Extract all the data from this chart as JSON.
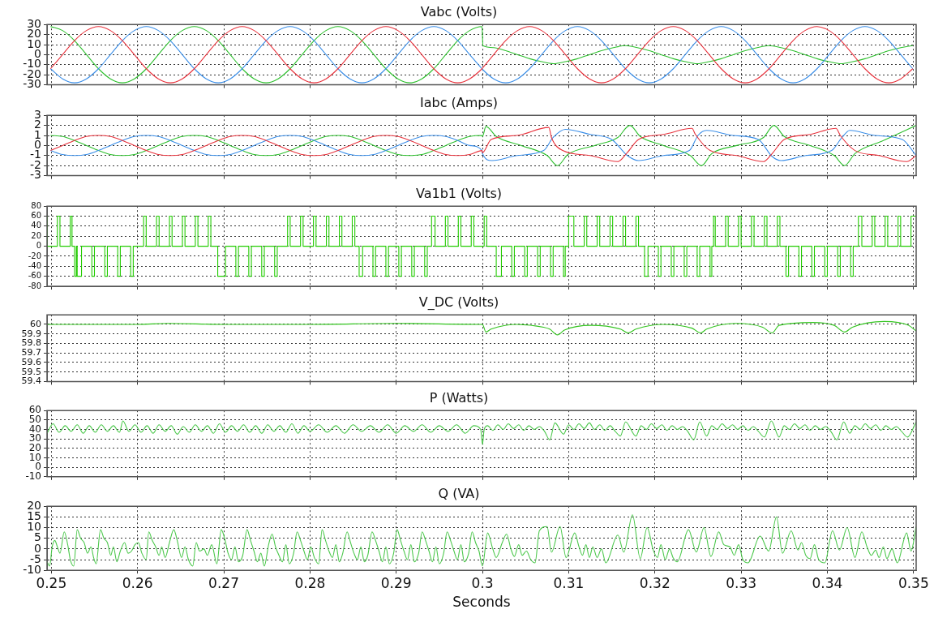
{
  "chart_data": [
    {
      "type": "line",
      "title": "Vabc (Volts)",
      "tick_labels": "y",
      "grid": true,
      "xlim": [
        0.2495,
        0.3503
      ],
      "xticks": [
        0.25,
        0.26,
        0.27,
        0.28,
        0.29,
        0.3,
        0.31,
        0.32,
        0.33,
        0.34,
        0.35
      ],
      "ylim": [
        -30,
        30
      ],
      "yticks": [
        -30,
        -20,
        -10,
        0,
        10,
        20,
        30
      ],
      "x": [
        0.24991,
        0.2513,
        0.25269,
        0.25408,
        0.25547,
        0.25685,
        0.25824,
        0.25963,
        0.26102,
        0.26241,
        0.2638,
        0.26519,
        0.26658,
        0.26797,
        0.26936,
        0.27075,
        0.27213,
        0.27352,
        0.27491,
        0.2763,
        0.27769,
        0.27908,
        0.28047,
        0.28186,
        0.28324,
        0.28463,
        0.28602,
        0.28741,
        0.2888,
        0.29019,
        0.29158,
        0.29297,
        0.29436,
        0.29574,
        0.29713,
        0.29852,
        0.29995,
        0.30005,
        0.3013,
        0.30269,
        0.30408,
        0.30547,
        0.30686,
        0.30824,
        0.30963,
        0.31102,
        0.31241,
        0.3138,
        0.31519,
        0.31658,
        0.31797,
        0.31936,
        0.32074,
        0.32213,
        0.32352,
        0.32491,
        0.3263,
        0.32769,
        0.32908,
        0.33047,
        0.33186,
        0.33324,
        0.33463,
        0.33602,
        0.33741,
        0.3388,
        0.34019,
        0.34158,
        0.34297,
        0.34436,
        0.34574,
        0.34713,
        0.34852,
        0.34991
      ],
      "series": [
        {
          "color": "#e8323c",
          "values": [
            -14,
            0,
            14,
            24,
            28,
            24,
            14,
            0,
            -14,
            -24,
            -28,
            -24,
            -14,
            0,
            14,
            24,
            28,
            24,
            14,
            0,
            -14,
            -24,
            -28,
            -24,
            -14,
            0,
            14,
            24,
            28,
            24,
            14,
            0,
            -14,
            -24,
            -28,
            -24,
            -14,
            -13,
            0,
            14,
            24,
            28,
            24,
            14,
            0,
            -14,
            -24,
            -28,
            -24,
            -14,
            0,
            14,
            24,
            28,
            24,
            14,
            0,
            -14,
            -24,
            -28,
            -24,
            -14,
            0,
            14,
            24,
            28,
            24,
            14,
            0,
            -14,
            -24,
            -28,
            -24,
            -14
          ]
        },
        {
          "color": "#3a8ee8",
          "values": [
            -14,
            -24,
            -28,
            -24,
            -14,
            0,
            14,
            24,
            28,
            24,
            14,
            0,
            -14,
            -24,
            -28,
            -24,
            -14,
            0,
            14,
            24,
            28,
            24,
            14,
            0,
            -14,
            -24,
            -28,
            -24,
            -14,
            0,
            14,
            24,
            28,
            24,
            14,
            0,
            -14,
            -15,
            -24,
            -28,
            -24,
            -14,
            0,
            14,
            24,
            28,
            24,
            14,
            0,
            -14,
            -24,
            -28,
            -24,
            -14,
            0,
            14,
            24,
            28,
            24,
            14,
            0,
            -14,
            -24,
            -28,
            -24,
            -14,
            0,
            14,
            24,
            28,
            24,
            14,
            0,
            -14
          ]
        },
        {
          "color": "#2ec02e",
          "values": [
            28,
            24,
            14,
            0,
            -14,
            -24,
            -28,
            -24,
            -14,
            0,
            14,
            24,
            28,
            24,
            14,
            0,
            -14,
            -24,
            -28,
            -24,
            -14,
            0,
            14,
            24,
            28,
            24,
            14,
            0,
            -14,
            -24,
            -28,
            -24,
            -14,
            0,
            14,
            24,
            28,
            9,
            7,
            4,
            0,
            -4,
            -7,
            -9,
            -7,
            -4,
            0,
            4,
            7,
            9,
            7,
            4,
            0,
            -4,
            -7,
            -9,
            -7,
            -4,
            0,
            4,
            7,
            9,
            7,
            4,
            0,
            -4,
            -7,
            -9,
            -7,
            -4,
            0,
            4,
            7,
            9
          ]
        }
      ]
    },
    {
      "type": "line",
      "title": "Iabc (Amps)",
      "tick_labels": "y",
      "grid": true,
      "xlim": [
        0.2495,
        0.3503
      ],
      "xticks": [
        0.25,
        0.26,
        0.27,
        0.28,
        0.29,
        0.3,
        0.31,
        0.32,
        0.33,
        0.34,
        0.35
      ],
      "ylim": [
        -3,
        3
      ],
      "yticks": [
        -3,
        -2,
        -1,
        0,
        1,
        2,
        3
      ],
      "series": [
        {
          "color": "#e8323c",
          "x": [
            0.24991,
            0.2513,
            0.25269,
            0.25408,
            0.25547,
            0.25685,
            0.25824,
            0.25963,
            0.26102,
            0.26241,
            0.2638,
            0.26519,
            0.26658,
            0.26797,
            0.26936,
            0.27075,
            0.27213,
            0.27352,
            0.27491,
            0.2763,
            0.27769,
            0.27908,
            0.28047,
            0.28186,
            0.28324,
            0.28463,
            0.28602,
            0.28741,
            0.2888,
            0.29019,
            0.29158,
            0.29297,
            0.29436,
            0.29574,
            0.29713,
            0.29852,
            0.29995,
            0.3,
            0.301,
            0.304,
            0.3077,
            0.308,
            0.3093,
            0.3125,
            0.3157,
            0.3168,
            0.3181,
            0.321,
            0.3243,
            0.3247,
            0.3264,
            0.3295,
            0.3326,
            0.3336,
            0.335,
            0.338,
            0.341,
            0.3415,
            0.3432,
            0.346,
            0.3492,
            0.3503
          ],
          "values": [
            -0.5,
            0,
            0.5,
            0.9,
            1,
            0.9,
            0.5,
            0,
            -0.5,
            -0.9,
            -1,
            -0.9,
            -0.5,
            0,
            0.5,
            0.9,
            1,
            0.9,
            0.5,
            0,
            -0.5,
            -0.9,
            -1,
            -0.9,
            -0.5,
            0,
            0.5,
            0.9,
            1,
            0.9,
            0.5,
            0,
            -0.5,
            -0.9,
            -1,
            -0.9,
            -0.5,
            -0.7,
            0.6,
            1,
            1.8,
            0.8,
            -0.5,
            -1,
            -1.6,
            -0.7,
            0.6,
            1.1,
            1.7,
            1.1,
            -0.5,
            -1,
            -1.6,
            -0.8,
            0.6,
            1.1,
            1.7,
            1,
            -0.5,
            -1,
            -1.6,
            -1
          ]
        },
        {
          "color": "#3a8ee8",
          "x": [
            0.24991,
            0.2513,
            0.25269,
            0.25408,
            0.25547,
            0.25685,
            0.25824,
            0.25963,
            0.26102,
            0.26241,
            0.2638,
            0.26519,
            0.26658,
            0.26797,
            0.26936,
            0.27075,
            0.27213,
            0.27352,
            0.27491,
            0.2763,
            0.27769,
            0.27908,
            0.28047,
            0.28186,
            0.28324,
            0.28463,
            0.28602,
            0.28741,
            0.2888,
            0.29019,
            0.29158,
            0.29297,
            0.29436,
            0.29574,
            0.29713,
            0.29852,
            0.29995,
            0.3,
            0.3011,
            0.304,
            0.3071,
            0.3082,
            0.3096,
            0.3125,
            0.315,
            0.3168,
            0.3181,
            0.321,
            0.324,
            0.325,
            0.326,
            0.329,
            0.332,
            0.3336,
            0.3346,
            0.3375,
            0.3405,
            0.3417,
            0.3426,
            0.3455,
            0.3487,
            0.3503
          ],
          "values": [
            -0.5,
            -0.9,
            -1,
            -0.9,
            -0.5,
            0,
            0.5,
            0.9,
            1,
            0.9,
            0.5,
            0,
            -0.5,
            -0.9,
            -1,
            -0.9,
            -0.5,
            0,
            0.5,
            0.9,
            1,
            0.9,
            0.5,
            0,
            -0.5,
            -0.9,
            -1,
            -0.9,
            -0.5,
            0,
            0.5,
            0.9,
            1,
            0.9,
            0.5,
            0,
            -0.5,
            -0.8,
            -1.5,
            -1,
            -0.5,
            0.8,
            1.6,
            1.1,
            0.6,
            -1,
            -1.5,
            -1,
            -0.5,
            1,
            1.5,
            1,
            0.6,
            -1.1,
            -1.5,
            -1,
            -0.5,
            0.8,
            1.5,
            1,
            0.6,
            -1
          ]
        },
        {
          "color": "#2ec02e",
          "x": [
            0.24991,
            0.2513,
            0.25269,
            0.25408,
            0.25547,
            0.25685,
            0.25824,
            0.25963,
            0.26102,
            0.26241,
            0.2638,
            0.26519,
            0.26658,
            0.26797,
            0.26936,
            0.27075,
            0.27213,
            0.27352,
            0.27491,
            0.2763,
            0.27769,
            0.27908,
            0.28047,
            0.28186,
            0.28324,
            0.28463,
            0.28602,
            0.28741,
            0.2888,
            0.29019,
            0.29158,
            0.29297,
            0.29436,
            0.29574,
            0.29713,
            0.29852,
            0.29995,
            0.3,
            0.3004,
            0.3016,
            0.3045,
            0.3075,
            0.3087,
            0.3099,
            0.313,
            0.3157,
            0.3171,
            0.3183,
            0.321,
            0.3241,
            0.3254,
            0.3266,
            0.3295,
            0.3326,
            0.3338,
            0.335,
            0.338,
            0.3408,
            0.342,
            0.3432,
            0.3465,
            0.3503
          ],
          "values": [
            1,
            0.9,
            0.5,
            0,
            -0.5,
            -0.9,
            -1,
            -0.9,
            -0.5,
            0,
            0.5,
            0.9,
            1,
            0.9,
            0.5,
            0,
            -0.5,
            -0.9,
            -1,
            -0.9,
            -0.5,
            0,
            0.5,
            0.9,
            1,
            0.9,
            0.5,
            0,
            -0.5,
            -0.9,
            -1,
            -0.9,
            -0.5,
            0,
            0.5,
            0.9,
            1,
            0.9,
            1.9,
            0.9,
            0,
            -1,
            -2,
            -0.9,
            0,
            0.8,
            2,
            0.9,
            0,
            -1,
            -2,
            -0.8,
            0,
            0.8,
            2,
            0.9,
            0,
            -1,
            -2,
            -0.8,
            0.5,
            2
          ]
        }
      ]
    },
    {
      "type": "step",
      "title": "Va1b1 (Volts)",
      "tick_labels": "y",
      "grid": true,
      "xlim": [
        0.2495,
        0.3503
      ],
      "xticks": [
        0.25,
        0.26,
        0.27,
        0.28,
        0.29,
        0.3,
        0.31,
        0.32,
        0.33,
        0.34,
        0.35
      ],
      "ylim": [
        -80,
        80
      ],
      "yticks": [
        -80,
        -60,
        -40,
        -20,
        0,
        20,
        40,
        60,
        80
      ],
      "series": [
        {
          "color": "#22cc00",
          "x": [
            0.2495,
            0.2507,
            0.251,
            0.2522,
            0.2524,
            0.2527,
            0.2529,
            0.253,
            0.2535,
            0.2547,
            0.255,
            0.2562,
            0.2565,
            0.2577,
            0.258,
            0.2592,
            0.2595,
            0.2607,
            0.261,
            0.2622,
            0.2625,
            0.2637,
            0.264,
            0.2652,
            0.2655,
            0.2667,
            0.267,
            0.2682,
            0.2685,
            0.2693,
            0.2702,
            0.2714,
            0.2717,
            0.2729,
            0.2732,
            0.2744,
            0.2747,
            0.2759,
            0.2762,
            0.2774,
            0.2777,
            0.2789,
            0.2792,
            0.2804,
            0.2807,
            0.2819,
            0.2822,
            0.2834,
            0.2837,
            0.2849,
            0.2852,
            0.2857,
            0.2861,
            0.2873,
            0.2876,
            0.2888,
            0.2891,
            0.2903,
            0.2906,
            0.2918,
            0.2921,
            0.2933,
            0.2936,
            0.2941,
            0.2945,
            0.2957,
            0.296,
            0.2972,
            0.2975,
            0.2987,
            0.299,
            0.3002,
            0.3005,
            0.3016,
            0.3022,
            0.3034,
            0.3037,
            0.3049,
            0.3052,
            0.3064,
            0.3067,
            0.3079,
            0.3082,
            0.3094,
            0.3096,
            0.31,
            0.3106,
            0.3118,
            0.3121,
            0.3133,
            0.3136,
            0.3148,
            0.3151,
            0.3163,
            0.3166,
            0.3178,
            0.3181,
            0.3188,
            0.3192,
            0.3204,
            0.3207,
            0.3219,
            0.3222,
            0.3234,
            0.3237,
            0.3249,
            0.3252,
            0.3264,
            0.3266,
            0.3268,
            0.327,
            0.3282,
            0.3285,
            0.3297,
            0.33,
            0.3312,
            0.3315,
            0.3327,
            0.333,
            0.3342,
            0.3345,
            0.3352,
            0.3355,
            0.3367,
            0.337,
            0.3382,
            0.3385,
            0.3397,
            0.34,
            0.3412,
            0.3415,
            0.3427,
            0.343,
            0.3436,
            0.344,
            0.3452,
            0.3455,
            0.3467,
            0.347,
            0.3482,
            0.3485,
            0.3497,
            0.35,
            0.3503
          ],
          "values": [
            60,
            0,
            60,
            0,
            60,
            0,
            -60,
            0,
            -60,
            0,
            -60,
            0,
            -60,
            0,
            -60,
            0,
            -60,
            0,
            60,
            0,
            60,
            0,
            60,
            0,
            60,
            0,
            60,
            0,
            60,
            0,
            -60,
            0,
            -60,
            0,
            -60,
            0,
            -60,
            0,
            -60,
            0,
            60,
            0,
            60,
            0,
            60,
            0,
            60,
            0,
            60,
            0,
            60,
            0,
            -60,
            0,
            -60,
            0,
            -60,
            0,
            -60,
            0,
            -60,
            0,
            -60,
            0,
            60,
            0,
            60,
            0,
            60,
            0,
            60,
            0,
            60,
            0,
            -60,
            0,
            -60,
            0,
            -60,
            0,
            -60,
            0,
            -60,
            0,
            -60,
            0,
            60,
            0,
            60,
            0,
            60,
            0,
            60,
            0,
            60,
            0,
            60,
            0,
            -60,
            0,
            -60,
            0,
            -60,
            0,
            -60,
            0,
            -60,
            0,
            -60,
            0,
            60,
            0,
            60,
            0,
            60,
            0,
            60,
            0,
            60,
            0,
            60,
            0,
            -60,
            0,
            -60,
            0,
            -60,
            0,
            -60,
            0,
            -60,
            0,
            -60,
            0,
            60,
            0,
            60,
            0,
            60,
            0,
            60,
            0,
            60,
            60
          ]
        }
      ]
    },
    {
      "type": "line",
      "title": "V_DC (Volts)",
      "tick_labels": "y",
      "grid": true,
      "xlim": [
        0.2495,
        0.3503
      ],
      "xticks": [
        0.25,
        0.26,
        0.27,
        0.28,
        0.29,
        0.3,
        0.31,
        0.32,
        0.33,
        0.34,
        0.35
      ],
      "ylim": [
        59.4,
        60.1
      ],
      "yticks": [
        59.4,
        59.5,
        59.6,
        59.7,
        59.8,
        59.9,
        60
      ],
      "series": [
        {
          "color": "#33c41f",
          "x": [
            0.2495,
            0.2525,
            0.26,
            0.2635,
            0.27,
            0.28,
            0.29,
            0.2999,
            0.3,
            0.3004,
            0.301,
            0.304,
            0.3071,
            0.3078,
            0.3087,
            0.3095,
            0.3126,
            0.316,
            0.3169,
            0.3178,
            0.3209,
            0.3243,
            0.3253,
            0.326,
            0.3294,
            0.3325,
            0.3336,
            0.3344,
            0.3383,
            0.3408,
            0.342,
            0.3429,
            0.3466,
            0.3494,
            0.3503
          ],
          "values": [
            60,
            60,
            60,
            60.01,
            60,
            60,
            60.01,
            60,
            60,
            59.92,
            59.95,
            60,
            59.97,
            59.95,
            59.89,
            59.94,
            59.99,
            59.95,
            59.91,
            59.95,
            60,
            59.96,
            59.91,
            59.95,
            60.01,
            59.97,
            59.91,
            59.99,
            60.02,
            59.99,
            59.92,
            59.97,
            60.03,
            59.99,
            59.93
          ]
        }
      ]
    },
    {
      "type": "line",
      "title": "P (Watts)",
      "tick_labels": "y",
      "grid": true,
      "xlim": [
        0.2495,
        0.3503
      ],
      "xticks": [
        0.25,
        0.26,
        0.27,
        0.28,
        0.29,
        0.3,
        0.31,
        0.32,
        0.33,
        0.34,
        0.35
      ],
      "ylim": [
        -10,
        60
      ],
      "yticks": [
        -10,
        0,
        10,
        20,
        30,
        40,
        50,
        60
      ],
      "series": [
        {
          "color": "#4cc84c",
          "x": [
            0.2495,
            0.2502,
            0.2509,
            0.2516,
            0.2523,
            0.253,
            0.2537,
            0.2544,
            0.2551,
            0.2558,
            0.2565,
            0.2572,
            0.2579,
            0.2583,
            0.259,
            0.2597,
            0.2604,
            0.2611,
            0.2618,
            0.2625,
            0.2632,
            0.2639,
            0.2646,
            0.2653,
            0.266,
            0.2667,
            0.2674,
            0.2681,
            0.2688,
            0.2695,
            0.2702,
            0.2709,
            0.2716,
            0.2723,
            0.273,
            0.2737,
            0.2744,
            0.2751,
            0.2758,
            0.2765,
            0.2772,
            0.2779,
            0.2786,
            0.2793,
            0.28,
            0.281,
            0.282,
            0.283,
            0.284,
            0.285,
            0.286,
            0.287,
            0.288,
            0.289,
            0.29,
            0.291,
            0.292,
            0.293,
            0.294,
            0.295,
            0.296,
            0.297,
            0.298,
            0.299,
            0.2998,
            0.3,
            0.3002,
            0.3006,
            0.3012,
            0.3018,
            0.3024,
            0.303,
            0.3036,
            0.3042,
            0.3048,
            0.3054,
            0.306,
            0.3066,
            0.3072,
            0.3078,
            0.3084,
            0.3094,
            0.31,
            0.3106,
            0.3112,
            0.3118,
            0.3124,
            0.313,
            0.3136,
            0.3142,
            0.3148,
            0.3154,
            0.316,
            0.3166,
            0.3178,
            0.3184,
            0.319,
            0.3196,
            0.3202,
            0.3208,
            0.3214,
            0.322,
            0.3226,
            0.3232,
            0.3238,
            0.3245,
            0.3252,
            0.326,
            0.3266,
            0.3272,
            0.3278,
            0.3284,
            0.329,
            0.3296,
            0.3302,
            0.3308,
            0.3314,
            0.332,
            0.3327,
            0.3335,
            0.3344,
            0.335,
            0.3356,
            0.3362,
            0.3368,
            0.3374,
            0.338,
            0.3386,
            0.3392,
            0.3398,
            0.3404,
            0.3411,
            0.3419,
            0.3426,
            0.3432,
            0.3438,
            0.3444,
            0.345,
            0.3456,
            0.3462,
            0.3468,
            0.3474,
            0.348,
            0.3486,
            0.3493,
            0.3503
          ],
          "values": [
            36,
            46,
            37,
            44,
            38,
            45,
            36,
            44,
            37,
            45,
            38,
            44,
            37,
            49,
            38,
            45,
            37,
            44,
            36,
            45,
            38,
            44,
            35,
            43,
            37,
            45,
            38,
            44,
            36,
            46,
            37,
            44,
            38,
            45,
            37,
            44,
            36,
            45,
            38,
            44,
            37,
            46,
            36,
            44,
            38,
            45,
            37,
            44,
            36,
            45,
            38,
            44,
            37,
            45,
            36,
            44,
            38,
            45,
            37,
            44,
            38,
            45,
            36,
            44,
            40,
            24,
            40,
            44,
            39,
            45,
            40,
            46,
            41,
            45,
            39,
            44,
            40,
            43,
            38,
            29,
            47,
            35,
            45,
            40,
            46,
            41,
            47,
            40,
            45,
            39,
            44,
            38,
            33,
            48,
            33,
            44,
            40,
            46,
            41,
            45,
            39,
            44,
            40,
            43,
            38,
            29,
            48,
            33,
            44,
            40,
            46,
            41,
            45,
            40,
            44,
            39,
            43,
            38,
            32,
            49,
            32,
            44,
            40,
            46,
            41,
            45,
            39,
            44,
            40,
            43,
            38,
            29,
            48,
            36,
            44,
            40,
            46,
            41,
            45,
            39,
            44,
            40,
            43,
            38,
            32,
            48
          ]
        }
      ]
    },
    {
      "type": "line",
      "title": "Q (VA)",
      "xlabel": "Seconds",
      "grid": true,
      "xlim": [
        0.2495,
        0.3503
      ],
      "xticks": [
        0.25,
        0.26,
        0.27,
        0.28,
        0.29,
        0.3,
        0.31,
        0.32,
        0.33,
        0.34,
        0.35
      ],
      "ylim": [
        -10,
        20
      ],
      "yticks": [
        -10,
        -5,
        0,
        5,
        10,
        15,
        20
      ],
      "series": [
        {
          "color": "#4cc84c",
          "x": [
            0.2495,
            0.2498,
            0.2501,
            0.2504,
            0.2507,
            0.251,
            0.2515,
            0.2519,
            0.2522,
            0.2526,
            0.253,
            0.2534,
            0.2538,
            0.2542,
            0.2546,
            0.2549,
            0.2552,
            0.2557,
            0.2561,
            0.2565,
            0.2569,
            0.2572,
            0.2576,
            0.258,
            0.2585,
            0.2589,
            0.2593,
            0.2597,
            0.2601,
            0.2605,
            0.261,
            0.2613,
            0.2617,
            0.2621,
            0.2625,
            0.2628,
            0.2632,
            0.2637,
            0.2642,
            0.2646,
            0.2651,
            0.2655,
            0.2659,
            0.2664,
            0.2668,
            0.2672,
            0.2677,
            0.2681,
            0.2686,
            0.2692,
            0.2697,
            0.2701,
            0.2705,
            0.2709,
            0.2713,
            0.2717,
            0.2722,
            0.2727,
            0.2731,
            0.2735,
            0.2739,
            0.2743,
            0.2747,
            0.2752,
            0.2756,
            0.276,
            0.2764,
            0.2768,
            0.2772,
            0.2776,
            0.2781,
            0.2785,
            0.2789,
            0.2793,
            0.2797,
            0.2801,
            0.2805,
            0.281,
            0.2814,
            0.2818,
            0.2822,
            0.2826,
            0.283,
            0.2834,
            0.2838,
            0.2843,
            0.2847,
            0.2851,
            0.2855,
            0.2859,
            0.2863,
            0.2867,
            0.2872,
            0.2876,
            0.288,
            0.2884,
            0.2888,
            0.2892,
            0.2897,
            0.2901,
            0.2905,
            0.2909,
            0.2913,
            0.2917,
            0.2921,
            0.2926,
            0.293,
            0.2934,
            0.2938,
            0.2942,
            0.2946,
            0.295,
            0.2955,
            0.2959,
            0.2963,
            0.2967,
            0.2971,
            0.2975,
            0.2979,
            0.2984,
            0.2988,
            0.2992,
            0.2996,
            0.3,
            0.3006,
            0.3012,
            0.3016,
            0.3023,
            0.3028,
            0.3033,
            0.3037,
            0.3042,
            0.3046,
            0.3051,
            0.3056,
            0.3061,
            0.3066,
            0.3075,
            0.308,
            0.309,
            0.3097,
            0.3107,
            0.3112,
            0.3116,
            0.312,
            0.3124,
            0.3128,
            0.3133,
            0.3138,
            0.3143,
            0.3157,
            0.3164,
            0.3174,
            0.3183,
            0.3191,
            0.3198,
            0.3203,
            0.3207,
            0.3212,
            0.3217,
            0.3221,
            0.3226,
            0.3239,
            0.3248,
            0.3257,
            0.3265,
            0.3274,
            0.328,
            0.3287,
            0.3292,
            0.3297,
            0.3302,
            0.3308,
            0.3322,
            0.3332,
            0.3341,
            0.3348,
            0.3358,
            0.3366,
            0.337,
            0.3375,
            0.338,
            0.3385,
            0.339,
            0.3397,
            0.3406,
            0.3414,
            0.3423,
            0.3432,
            0.344,
            0.3446,
            0.3451,
            0.3456,
            0.346,
            0.3465,
            0.3469,
            0.3475,
            0.3481,
            0.3492,
            0.3497,
            0.3503
          ],
          "values": [
            -6,
            -8,
            1,
            4,
            1,
            -2,
            8,
            2,
            -5,
            -8,
            9,
            5,
            3,
            -2,
            1,
            -4,
            -7,
            9,
            5,
            3,
            -3,
            1,
            -6,
            -1,
            3,
            -2,
            -1,
            2,
            3,
            -2,
            -5,
            8,
            4,
            1,
            -3,
            1,
            -4,
            3,
            9,
            4,
            -4,
            1,
            -5,
            -8,
            3,
            -1,
            0,
            -3,
            2,
            -7,
            9,
            5,
            -2,
            -5,
            1,
            -6,
            -3,
            9,
            4,
            -1,
            -6,
            -2,
            -8,
            2,
            7,
            1,
            -3,
            -6,
            2,
            -7,
            -2,
            8,
            4,
            -1,
            -5,
            1,
            -4,
            -7,
            9,
            4,
            -1,
            -4,
            2,
            -6,
            -2,
            8,
            3,
            -2,
            -5,
            1,
            -6,
            -3,
            8,
            4,
            -1,
            -6,
            1,
            -7,
            -2,
            9,
            4,
            -1,
            -5,
            2,
            -6,
            -2,
            8,
            4,
            -1,
            -6,
            1,
            -7,
            -2,
            8,
            4,
            -1,
            -5,
            2,
            -6,
            -2,
            8,
            3,
            -1,
            -8,
            7.5,
            0,
            -4,
            3,
            7,
            0,
            -3.5,
            2,
            -3,
            -1,
            -5,
            -6.5,
            8.5,
            10.5,
            -1.5,
            10.5,
            -4,
            7.5,
            1,
            -3,
            2,
            -4,
            1,
            -4,
            0,
            -6.5,
            6.5,
            -1.5,
            16,
            -4.5,
            10,
            -0.5,
            -4,
            2,
            -5,
            0,
            -4,
            -6,
            9,
            -1.5,
            10,
            -3.5,
            8,
            2,
            1,
            -3,
            2,
            -5,
            -6.5,
            6,
            -1,
            15,
            -2,
            8.5,
            -0.5,
            3,
            -3,
            -4.5,
            2,
            -5,
            -6.5,
            8.5,
            -0.5,
            10,
            -4,
            8,
            1,
            -3,
            -0.5,
            -4,
            1,
            -4.5,
            0,
            -6.5,
            7.5,
            -1,
            10.5
          ]
        }
      ]
    }
  ]
}
